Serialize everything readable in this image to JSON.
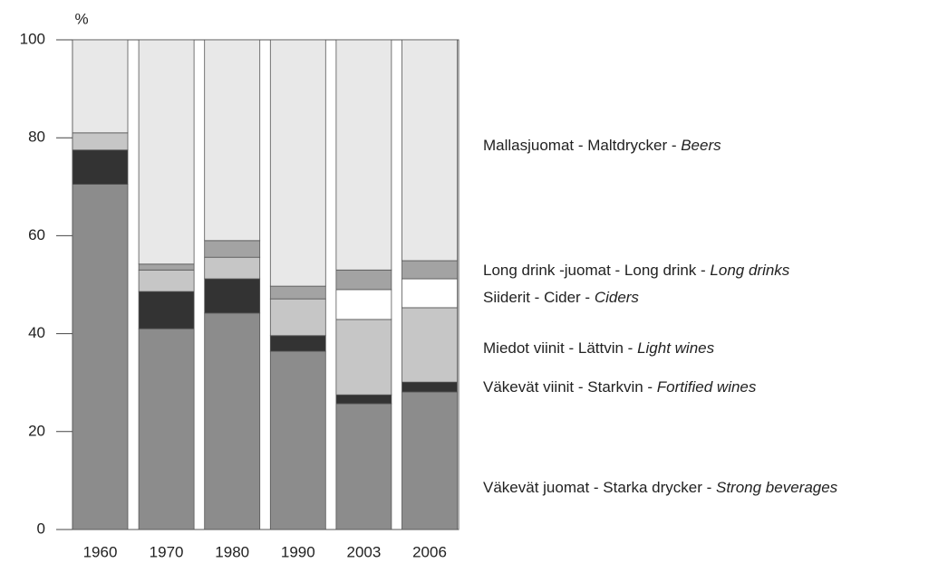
{
  "chart_data": {
    "type": "stacked_bar",
    "y_label": "%",
    "categories": [
      "1960",
      "1970",
      "1980",
      "1990",
      "2003",
      "2006"
    ],
    "series": [
      {
        "name": "Väkevät juomat - Starka drycker - Strong beverages",
        "color": "#8c8c8c",
        "values": [
          70.5,
          41,
          44.2,
          36.4,
          25.7,
          28.1
        ]
      },
      {
        "name": "Väkevät viinit - Starkvin - Fortified wines",
        "color": "#333333",
        "values": [
          7,
          7.6,
          7,
          3.2,
          1.8,
          2
        ]
      },
      {
        "name": "Miedot viinit - Lättvin - Light wines",
        "color": "#c6c6c6",
        "values": [
          3.5,
          4.4,
          4.4,
          7.5,
          15.4,
          15.2
        ]
      },
      {
        "name": "Siiderit - Cider - Ciders",
        "color": "#ffffff",
        "values": [
          0,
          0,
          0,
          0,
          6.1,
          5.9
        ]
      },
      {
        "name": "Long drink -juomat - Long drink - Long drinks",
        "color": "#a3a3a3",
        "values": [
          0,
          1.2,
          3.4,
          2.6,
          4,
          3.7
        ]
      },
      {
        "name": "Mallasjuomat - Maltdrycker - Beers",
        "color": "#e8e8e8",
        "values": [
          19,
          45.8,
          41,
          50.3,
          47,
          45.1
        ]
      }
    ],
    "ylim": [
      0,
      100
    ],
    "yticks": [
      0,
      20,
      40,
      60,
      80,
      100
    ]
  }
}
